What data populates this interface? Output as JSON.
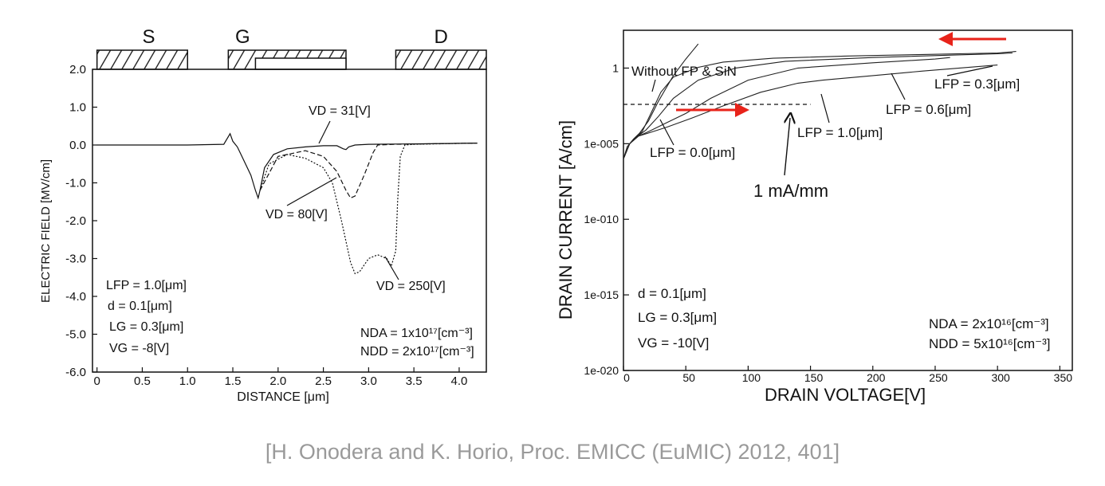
{
  "citation": "[H. Onodera and K. Horio, Proc. EMICC (EuMIC) 2012, 401]",
  "chart_data": [
    {
      "type": "line",
      "xlabel": "DISTANCE [μm]",
      "ylabel": "ELECTRIC FIELD [MV/cm]",
      "xlim": [
        -0.05,
        4.3
      ],
      "ylim": [
        -6.0,
        2.0
      ],
      "xticks": [
        "0",
        "0.5",
        "1.0",
        "1.5",
        "2.0",
        "2.5",
        "3.0",
        "3.5",
        "4.0"
      ],
      "xtick_values": [
        0,
        0.5,
        1.0,
        1.5,
        2.0,
        2.5,
        3.0,
        3.5,
        4.0
      ],
      "yticks": [
        "2.0",
        "1.0",
        "0.0",
        "-1.0",
        "-2.0",
        "-3.0",
        "-4.0",
        "-5.0",
        "-6.0"
      ],
      "ytick_values": [
        2,
        1,
        0,
        -1,
        -2,
        -3,
        -4,
        -5,
        -6
      ],
      "electrodes": {
        "source": {
          "label": "S",
          "x": [
            0,
            1.0
          ]
        },
        "gate": {
          "label": "G",
          "x": [
            1.45,
            2.75
          ]
        },
        "field_plate": {
          "x": [
            1.75,
            2.75
          ]
        },
        "drain": {
          "label": "D",
          "x": [
            3.3,
            4.3
          ]
        }
      },
      "series": [
        {
          "name": "VD = 31[V]",
          "style": "solid",
          "x": [
            0,
            1.0,
            1.4,
            1.47,
            1.5,
            1.55,
            1.6,
            1.7,
            1.75,
            1.78,
            1.8,
            1.85,
            1.95,
            2.1,
            2.3,
            2.5,
            2.65,
            2.72,
            2.75,
            2.78,
            2.85,
            3.0,
            3.5,
            4.2
          ],
          "y": [
            0,
            0,
            0.02,
            0.3,
            0.1,
            -0.05,
            -0.3,
            -0.8,
            -1.2,
            -1.4,
            -1.2,
            -0.6,
            -0.25,
            -0.1,
            -0.05,
            -0.02,
            -0.02,
            -0.1,
            -0.12,
            -0.05,
            0.0,
            0.02,
            0.03,
            0.05
          ]
        },
        {
          "name": "VD = 80[V]",
          "style": "dashed",
          "x": [
            1.8,
            2.0,
            2.3,
            2.5,
            2.65,
            2.75,
            2.8,
            2.85,
            2.95,
            3.05,
            3.1,
            3.3,
            4.2
          ],
          "y": [
            -1.2,
            -0.3,
            -0.15,
            -0.3,
            -0.7,
            -1.2,
            -1.4,
            -1.35,
            -0.8,
            -0.2,
            0.0,
            0.02,
            0.05
          ]
        },
        {
          "name": "VD = 250[V]",
          "style": "dotted",
          "x": [
            1.8,
            1.9,
            2.1,
            2.3,
            2.5,
            2.6,
            2.7,
            2.8,
            2.85,
            2.9,
            3.0,
            3.1,
            3.2,
            3.25,
            3.3,
            3.32,
            3.35,
            3.4,
            3.5,
            4.2
          ],
          "y": [
            -1.2,
            -0.5,
            -0.25,
            -0.35,
            -0.6,
            -1.0,
            -2.0,
            -3.1,
            -3.4,
            -3.35,
            -3.0,
            -2.9,
            -3.0,
            -3.2,
            -2.8,
            -1.5,
            -0.3,
            0.0,
            0.02,
            0.05
          ]
        }
      ],
      "labels": {
        "vd31": "VD = 31[V]",
        "vd80": "VD = 80[V]",
        "vd250": "VD = 250[V]"
      },
      "parameters": [
        "LFP = 1.0[μm]",
        "d = 0.1[μm]",
        "LG = 0.3[μm]",
        "VG = -8[V]"
      ],
      "doping": [
        "NDA = 1x10¹⁷[cm⁻³]",
        "NDD = 2x10¹⁷[cm⁻³]"
      ]
    },
    {
      "type": "line",
      "xlabel": "DRAIN VOLTAGE[V]",
      "ylabel": "DRAIN CURRENT [A/cm]",
      "yscale": "log",
      "xlim": [
        0,
        360
      ],
      "ylim_exponent": [
        -20,
        2.5
      ],
      "xticks": [
        "0",
        "50",
        "100",
        "150",
        "200",
        "250",
        "300",
        "350"
      ],
      "xtick_values": [
        0,
        50,
        100,
        150,
        200,
        250,
        300,
        350
      ],
      "yticks": [
        "1",
        "1e-005",
        "1e-010",
        "1e-015",
        "1e-020"
      ],
      "ytick_exponents": [
        0,
        -5,
        -10,
        -15,
        -20
      ],
      "reference_line": {
        "label": "1 mA/mm",
        "value": 0.01
      },
      "series": [
        {
          "name": "Without FP & SiN",
          "voltage": [
            0,
            3,
            8,
            13,
            20,
            28,
            40,
            50,
            56,
            60
          ],
          "log10_current": [
            -6,
            -5.2,
            -4.7,
            -4.3,
            -3.5,
            -2.2,
            -0.5,
            0.6,
            1.2,
            1.6
          ]
        },
        {
          "name": "LFP = 0.0[μm]",
          "voltage": [
            0,
            5,
            10,
            15,
            22,
            30,
            40,
            60,
            80,
            120,
            180,
            240,
            300,
            315
          ],
          "log10_current": [
            -6,
            -5,
            -4.6,
            -4.2,
            -3.0,
            -1.6,
            -0.6,
            0.05,
            0.4,
            0.65,
            0.8,
            0.9,
            1.0,
            1.1
          ]
        },
        {
          "name": "LFP = 0.3[μm]",
          "voltage": [
            0,
            5,
            10,
            18,
            28,
            40,
            60,
            90,
            130,
            200,
            260,
            300,
            312
          ],
          "log10_current": [
            -6,
            -5,
            -4.6,
            -4.1,
            -3.2,
            -2.0,
            -0.8,
            0.0,
            0.45,
            0.7,
            0.85,
            0.95,
            1.0
          ]
        },
        {
          "name": "LFP = 0.6[μm]",
          "voltage": [
            0,
            5,
            12,
            20,
            35,
            50,
            70,
            100,
            140,
            200,
            250,
            262
          ],
          "log10_current": [
            -6,
            -5,
            -4.5,
            -4.2,
            -3.6,
            -3.0,
            -2.0,
            -0.8,
            0.0,
            0.35,
            0.6,
            0.7
          ]
        },
        {
          "name": "LFP = 1.0[μm]",
          "voltage": [
            0,
            5,
            12,
            20,
            35,
            55,
            80,
            110,
            140,
            160,
            200,
            240,
            300
          ],
          "log10_current": [
            -6,
            -5,
            -4.5,
            -4.3,
            -3.9,
            -3.3,
            -2.5,
            -1.6,
            -1.0,
            -0.8,
            -0.5,
            -0.2,
            0.2
          ]
        }
      ],
      "parameters": [
        "d = 0.1[μm]",
        "LG = 0.3[μm]",
        "VG = -10[V]"
      ],
      "doping": [
        "NDA = 2x10¹⁶[cm⁻³]",
        "NDD = 5x10¹⁶[cm⁻³]"
      ],
      "arrow_color": "#e8231a"
    }
  ]
}
